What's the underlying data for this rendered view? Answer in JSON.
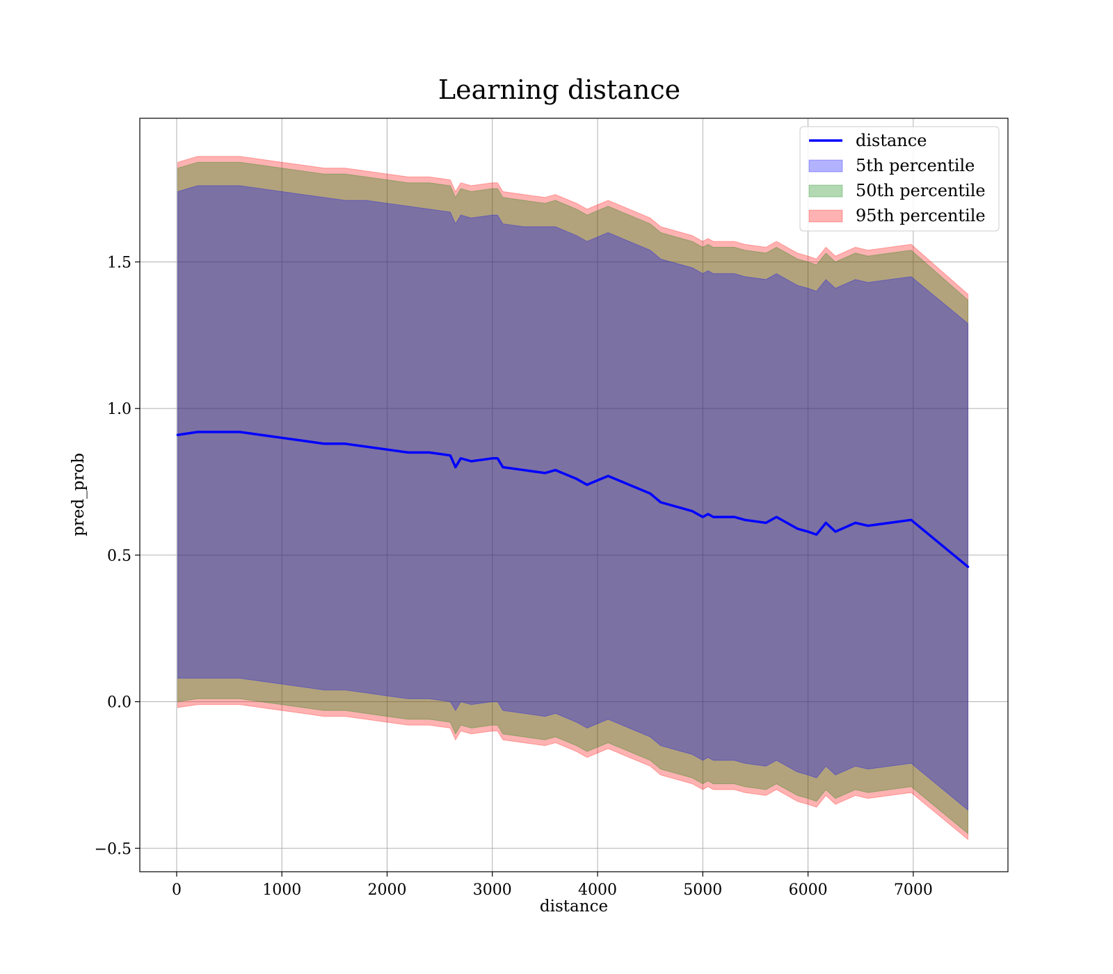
{
  "chart_data": {
    "type": "line",
    "title": "Learning distance",
    "xlabel": "distance",
    "ylabel": "pred_prob",
    "xlim": [
      -350,
      7900
    ],
    "ylim": [
      -0.58,
      1.99
    ],
    "x_ticks": [
      0,
      1000,
      2000,
      3000,
      4000,
      5000,
      6000,
      7000
    ],
    "y_ticks": [
      -0.5,
      0.0,
      0.5,
      1.0,
      1.5
    ],
    "x_tick_labels": [
      "0",
      "1000",
      "2000",
      "3000",
      "4000",
      "5000",
      "6000",
      "7000"
    ],
    "y_tick_labels": [
      "−0.5",
      "0.0",
      "0.5",
      "1.0",
      "1.5"
    ],
    "grid": true,
    "legend_position": "top-right",
    "line_color": "#0000ff",
    "colors": {
      "p5": "#0000ff",
      "p50": "#008000",
      "p95": "#ff0000"
    },
    "legend": [
      {
        "label": "distance",
        "kind": "line",
        "color": "#0000ff"
      },
      {
        "label": "5th percentile",
        "kind": "patch",
        "color": "#0000ff"
      },
      {
        "label": "50th percentile",
        "kind": "patch",
        "color": "#008000"
      },
      {
        "label": "95th percentile",
        "kind": "patch",
        "color": "#ff0000"
      }
    ],
    "x": [
      10,
      200,
      400,
      600,
      800,
      1000,
      1200,
      1400,
      1600,
      1800,
      2000,
      2200,
      2400,
      2600,
      2650,
      2700,
      2800,
      3000,
      3050,
      3100,
      3300,
      3500,
      3600,
      3800,
      3900,
      4100,
      4300,
      4500,
      4600,
      4700,
      4900,
      5000,
      5050,
      5100,
      5300,
      5400,
      5600,
      5700,
      5800,
      5900,
      6000,
      6080,
      6170,
      6260,
      6450,
      6570,
      6980,
      7520
    ],
    "series": [
      {
        "name": "distance",
        "values": [
          0.91,
          0.92,
          0.92,
          0.92,
          0.91,
          0.9,
          0.89,
          0.88,
          0.88,
          0.87,
          0.86,
          0.85,
          0.85,
          0.84,
          0.8,
          0.83,
          0.82,
          0.83,
          0.83,
          0.8,
          0.79,
          0.78,
          0.79,
          0.76,
          0.74,
          0.77,
          0.74,
          0.71,
          0.68,
          0.67,
          0.65,
          0.63,
          0.64,
          0.63,
          0.63,
          0.62,
          0.61,
          0.63,
          0.61,
          0.59,
          0.58,
          0.57,
          0.61,
          0.58,
          0.61,
          0.6,
          0.62,
          0.46
        ]
      }
    ],
    "bands": [
      {
        "name": "5th percentile",
        "upper": [
          1.74,
          1.76,
          1.76,
          1.76,
          1.75,
          1.74,
          1.73,
          1.72,
          1.71,
          1.71,
          1.7,
          1.69,
          1.68,
          1.67,
          1.63,
          1.66,
          1.65,
          1.66,
          1.66,
          1.63,
          1.62,
          1.62,
          1.62,
          1.59,
          1.57,
          1.6,
          1.57,
          1.54,
          1.51,
          1.5,
          1.48,
          1.46,
          1.47,
          1.46,
          1.46,
          1.45,
          1.44,
          1.46,
          1.44,
          1.42,
          1.41,
          1.4,
          1.44,
          1.41,
          1.44,
          1.43,
          1.45,
          1.29
        ],
        "lower": [
          0.08,
          0.08,
          0.08,
          0.08,
          0.07,
          0.06,
          0.05,
          0.04,
          0.04,
          0.03,
          0.02,
          0.01,
          0.01,
          0.0,
          -0.03,
          0.0,
          -0.01,
          0.0,
          0.0,
          -0.03,
          -0.04,
          -0.05,
          -0.04,
          -0.07,
          -0.09,
          -0.06,
          -0.09,
          -0.12,
          -0.15,
          -0.16,
          -0.18,
          -0.2,
          -0.19,
          -0.2,
          -0.2,
          -0.21,
          -0.22,
          -0.2,
          -0.22,
          -0.24,
          -0.25,
          -0.26,
          -0.22,
          -0.25,
          -0.22,
          -0.23,
          -0.21,
          -0.37
        ]
      },
      {
        "name": "50th percentile",
        "upper": [
          1.82,
          1.84,
          1.84,
          1.84,
          1.83,
          1.82,
          1.81,
          1.8,
          1.8,
          1.79,
          1.78,
          1.77,
          1.77,
          1.76,
          1.72,
          1.75,
          1.74,
          1.75,
          1.75,
          1.72,
          1.71,
          1.7,
          1.71,
          1.68,
          1.66,
          1.69,
          1.66,
          1.63,
          1.6,
          1.59,
          1.57,
          1.55,
          1.56,
          1.55,
          1.55,
          1.54,
          1.53,
          1.55,
          1.53,
          1.51,
          1.5,
          1.49,
          1.53,
          1.5,
          1.53,
          1.52,
          1.54,
          1.37
        ],
        "lower": [
          0.0,
          0.01,
          0.01,
          0.01,
          0.0,
          -0.01,
          -0.02,
          -0.03,
          -0.03,
          -0.04,
          -0.05,
          -0.06,
          -0.06,
          -0.07,
          -0.11,
          -0.08,
          -0.09,
          -0.08,
          -0.08,
          -0.11,
          -0.12,
          -0.13,
          -0.12,
          -0.15,
          -0.17,
          -0.14,
          -0.17,
          -0.2,
          -0.23,
          -0.24,
          -0.26,
          -0.28,
          -0.27,
          -0.28,
          -0.28,
          -0.29,
          -0.3,
          -0.28,
          -0.3,
          -0.32,
          -0.33,
          -0.34,
          -0.3,
          -0.33,
          -0.3,
          -0.31,
          -0.29,
          -0.45
        ]
      },
      {
        "name": "95th percentile",
        "upper": [
          1.84,
          1.86,
          1.86,
          1.86,
          1.85,
          1.84,
          1.83,
          1.82,
          1.82,
          1.81,
          1.8,
          1.79,
          1.79,
          1.78,
          1.74,
          1.77,
          1.76,
          1.77,
          1.77,
          1.74,
          1.73,
          1.72,
          1.73,
          1.7,
          1.68,
          1.71,
          1.68,
          1.65,
          1.62,
          1.61,
          1.59,
          1.57,
          1.58,
          1.57,
          1.57,
          1.56,
          1.55,
          1.57,
          1.55,
          1.53,
          1.52,
          1.51,
          1.55,
          1.52,
          1.55,
          1.54,
          1.56,
          1.39
        ],
        "lower": [
          -0.02,
          -0.01,
          -0.01,
          -0.01,
          -0.02,
          -0.03,
          -0.04,
          -0.05,
          -0.05,
          -0.06,
          -0.07,
          -0.08,
          -0.08,
          -0.09,
          -0.13,
          -0.1,
          -0.11,
          -0.1,
          -0.1,
          -0.13,
          -0.14,
          -0.15,
          -0.14,
          -0.17,
          -0.19,
          -0.16,
          -0.19,
          -0.22,
          -0.25,
          -0.26,
          -0.28,
          -0.3,
          -0.29,
          -0.3,
          -0.3,
          -0.31,
          -0.32,
          -0.3,
          -0.32,
          -0.34,
          -0.35,
          -0.36,
          -0.32,
          -0.35,
          -0.32,
          -0.33,
          -0.31,
          -0.47
        ]
      }
    ]
  }
}
